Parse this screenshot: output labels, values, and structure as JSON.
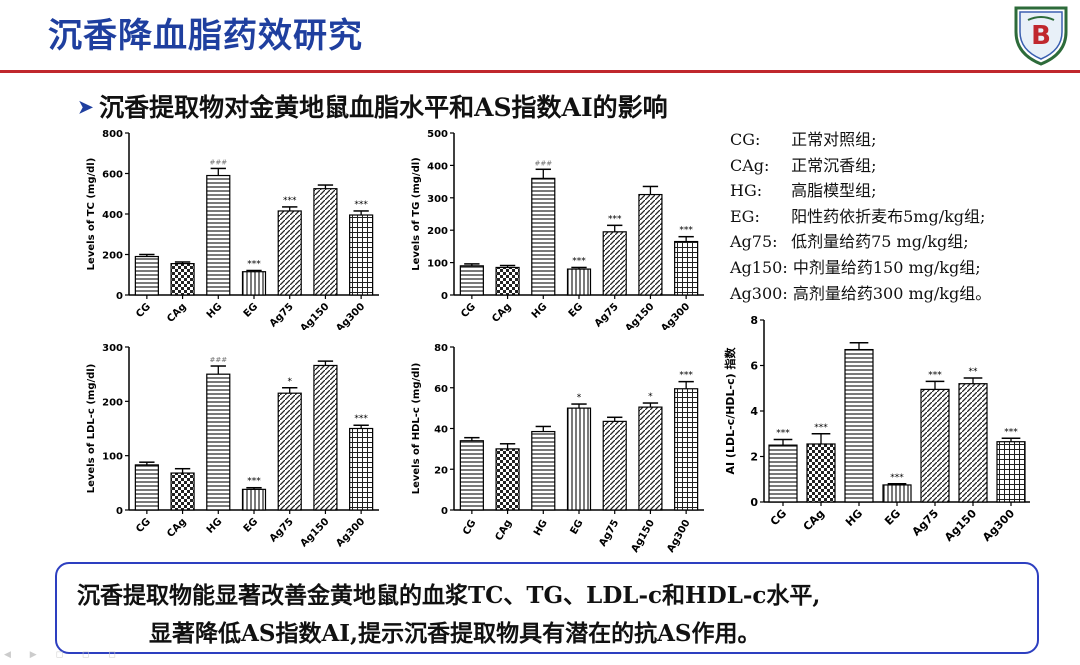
{
  "page": {
    "title": "沉香降血脂药效研究",
    "subtitle": "沉香提取物对金黄地鼠血脂水平和AS指数AI的影响"
  },
  "legend": [
    {
      "abbr": "CG:",
      "desc": "正常对照组;"
    },
    {
      "abbr": "CAg:",
      "desc": "正常沉香组;"
    },
    {
      "abbr": "HG:",
      "desc": "高脂模型组;"
    },
    {
      "abbr": "EG:",
      "desc": "阳性药依折麦布5mg/kg组;"
    },
    {
      "abbr": "Ag75:",
      "desc": "低剂量给药75 mg/kg组;"
    },
    {
      "abbr": "Ag150:",
      "desc": "中剂量给药150 mg/kg组;"
    },
    {
      "abbr": "Ag300:",
      "desc": "高剂量给药300 mg/kg组。"
    }
  ],
  "conclusion": {
    "line1": "沉香提取物能显著改善金黄地鼠的血浆TC、TG、LDL-c和HDL-c水平,",
    "line2": "显著降低AS指数AI,提示沉香提取物具有潜在的抗AS作用。"
  },
  "chart_data": [
    {
      "id": "tc",
      "type": "bar",
      "categories": [
        "CG",
        "CAg",
        "HG",
        "EG",
        "Ag75",
        "Ag150",
        "Ag300"
      ],
      "values": [
        190,
        155,
        590,
        115,
        415,
        525,
        395
      ],
      "errors": [
        10,
        8,
        35,
        6,
        20,
        18,
        20
      ],
      "annotations": [
        "",
        "",
        "###",
        "***",
        "***",
        "",
        "***"
      ],
      "ylabel": "Levels of TC (mg/dl)",
      "ylim": [
        0,
        800
      ],
      "yticks": [
        0,
        200,
        400,
        600,
        800
      ],
      "patterns": [
        "hlines",
        "checker",
        "hlines",
        "vlines",
        "diag",
        "diag",
        "grid"
      ]
    },
    {
      "id": "tg",
      "type": "bar",
      "categories": [
        "CG",
        "CAg",
        "HG",
        "EG",
        "Ag75",
        "Ag150",
        "Ag300"
      ],
      "values": [
        90,
        85,
        360,
        80,
        195,
        310,
        165
      ],
      "errors": [
        6,
        6,
        28,
        5,
        20,
        25,
        15
      ],
      "annotations": [
        "",
        "",
        "###",
        "***",
        "***",
        "",
        "***"
      ],
      "ylabel": "Levels of TG (mg/dl)",
      "ylim": [
        0,
        500
      ],
      "yticks": [
        0,
        100,
        200,
        300,
        400,
        500
      ],
      "patterns": [
        "hlines",
        "checker",
        "hlines",
        "vlines",
        "diag",
        "diag",
        "grid"
      ]
    },
    {
      "id": "ldl",
      "type": "bar",
      "categories": [
        "CG",
        "CAg",
        "HG",
        "EG",
        "Ag75",
        "Ag150",
        "Ag300"
      ],
      "values": [
        83,
        68,
        250,
        38,
        215,
        266,
        150
      ],
      "errors": [
        5,
        8,
        15,
        3,
        10,
        8,
        6
      ],
      "annotations": [
        "",
        "",
        "###",
        "***",
        "*",
        "",
        "***"
      ],
      "ylabel": "Levels of LDL-c (mg/dl)",
      "ylim": [
        0,
        300
      ],
      "yticks": [
        0,
        100,
        200,
        300
      ],
      "patterns": [
        "hlines",
        "checker",
        "hlines",
        "vlines",
        "diag",
        "diag",
        "grid"
      ]
    },
    {
      "id": "hdl",
      "type": "bar",
      "categories": [
        "CG",
        "CAg",
        "HG",
        "EG",
        "Ag75",
        "Ag150",
        "Ag300"
      ],
      "values": [
        34,
        30,
        38.5,
        50,
        43.5,
        50.5,
        59.5
      ],
      "errors": [
        1.5,
        2.5,
        2.5,
        2,
        2,
        2,
        3.5
      ],
      "annotations": [
        "",
        "",
        "",
        "*",
        "",
        "*",
        "***"
      ],
      "ylabel": "Levels of HDL-c (mg/dl)",
      "ylim": [
        0,
        80
      ],
      "yticks": [
        0,
        20,
        40,
        60,
        80
      ],
      "patterns": [
        "hlines",
        "checker",
        "hlines",
        "vlines",
        "diag",
        "diag",
        "grid"
      ]
    },
    {
      "id": "ai",
      "type": "bar",
      "categories": [
        "CG",
        "CAg",
        "HG",
        "EG",
        "Ag75",
        "Ag150",
        "Ag300"
      ],
      "values": [
        2.5,
        2.55,
        6.7,
        0.75,
        4.95,
        5.2,
        2.65
      ],
      "errors": [
        0.25,
        0.45,
        0.3,
        0.05,
        0.35,
        0.25,
        0.15
      ],
      "annotations": [
        "***",
        "***",
        "",
        "***",
        "***",
        "**",
        "***"
      ],
      "ylabel": "AI (LDL-c/HDL-c) 指数",
      "ylim": [
        0,
        8
      ],
      "yticks": [
        0,
        2,
        4,
        6,
        8
      ],
      "patterns": [
        "hlines",
        "checker",
        "hlines",
        "vlines",
        "diag",
        "diag",
        "grid"
      ]
    }
  ]
}
